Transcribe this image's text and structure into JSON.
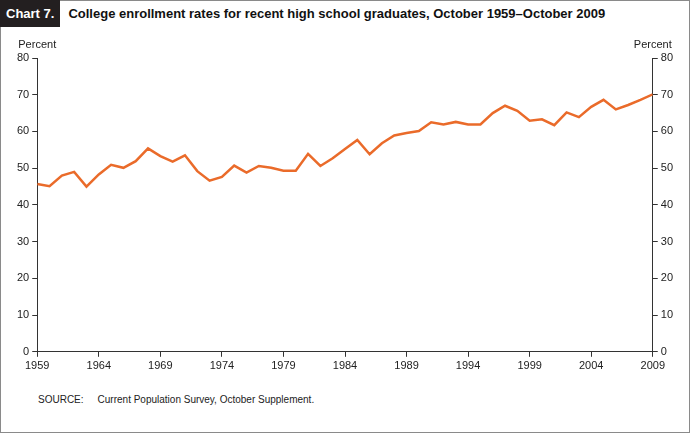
{
  "chart_data": {
    "type": "line",
    "chart_label": "Chart 7.",
    "title": "College enrollment rates for recent high school graduates, October 1959–October 2009",
    "ylabel": "Percent",
    "y2label": "Percent",
    "source_label": "SOURCE:",
    "source": "Current Population Survey, October Supplement.",
    "x": [
      1959,
      1960,
      1961,
      1962,
      1963,
      1964,
      1965,
      1966,
      1967,
      1968,
      1969,
      1970,
      1971,
      1972,
      1973,
      1974,
      1975,
      1976,
      1977,
      1978,
      1979,
      1980,
      1981,
      1982,
      1983,
      1984,
      1985,
      1986,
      1987,
      1988,
      1989,
      1990,
      1991,
      1992,
      1993,
      1994,
      1995,
      1996,
      1997,
      1998,
      1999,
      2000,
      2001,
      2002,
      2003,
      2004,
      2005,
      2006,
      2007,
      2008,
      2009
    ],
    "values": [
      45.7,
      45.1,
      48.0,
      49.0,
      45.0,
      48.3,
      50.9,
      50.1,
      51.9,
      55.4,
      53.3,
      51.8,
      53.5,
      49.2,
      46.6,
      47.6,
      50.7,
      48.8,
      50.6,
      50.1,
      49.3,
      49.3,
      53.9,
      50.6,
      52.7,
      55.2,
      57.7,
      53.8,
      56.8,
      58.9,
      59.6,
      60.1,
      62.5,
      61.9,
      62.6,
      61.9,
      61.9,
      65.0,
      67.0,
      65.6,
      62.9,
      63.3,
      61.7,
      65.2,
      63.9,
      66.7,
      68.6,
      66.0,
      67.2,
      68.6,
      70.1
    ],
    "color": "#ea6b2a",
    "xlim": [
      1959,
      2009
    ],
    "xticks": [
      1959,
      1964,
      1969,
      1974,
      1979,
      1984,
      1989,
      1994,
      1999,
      2004,
      2009
    ],
    "ylim": [
      0,
      80
    ],
    "yticks": [
      0,
      10,
      20,
      30,
      40,
      50,
      60,
      70,
      80
    ],
    "y2lim": [
      0,
      80
    ],
    "y2ticks": [
      0,
      10,
      20,
      30,
      40,
      50,
      60,
      70,
      80
    ],
    "grid": false
  }
}
